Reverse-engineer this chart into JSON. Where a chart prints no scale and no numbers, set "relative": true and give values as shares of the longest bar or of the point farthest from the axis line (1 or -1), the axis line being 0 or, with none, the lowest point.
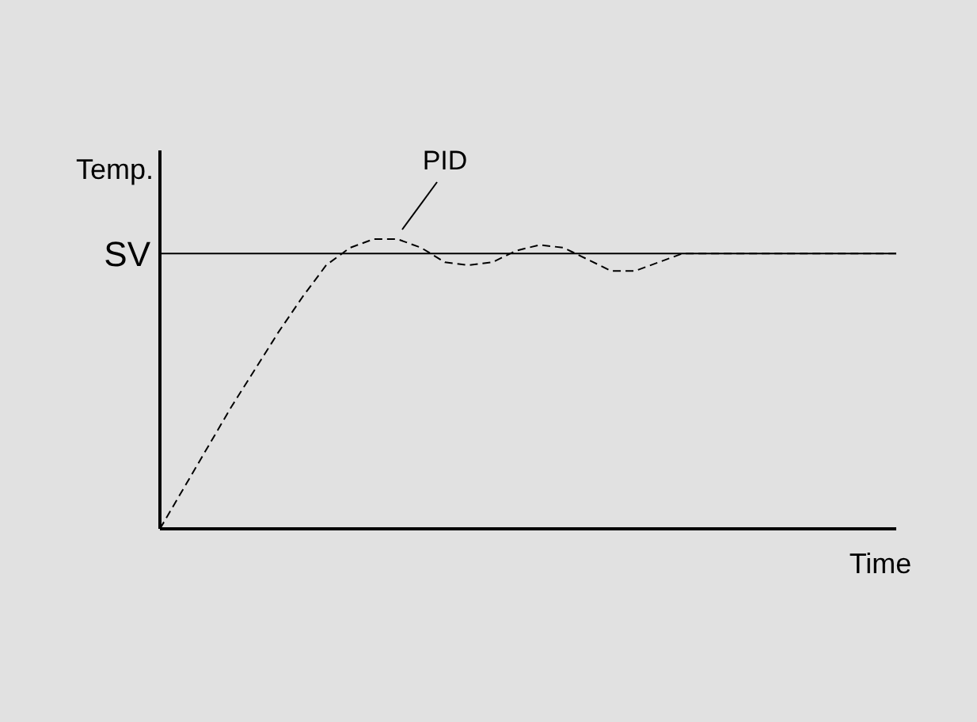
{
  "chart_data": {
    "type": "line",
    "relative": true,
    "xlabel": "Time",
    "ylabel": "Temp.",
    "annotations": [
      "PID"
    ],
    "categories": [
      null,
      null,
      null,
      null,
      null,
      null,
      null,
      null,
      null,
      null,
      null,
      null,
      null,
      null,
      null,
      null,
      null,
      null,
      null,
      null,
      null,
      null,
      null,
      null,
      null,
      null,
      null,
      null,
      null,
      null,
      null,
      null
    ],
    "series": [
      {
        "color": "#000000",
        "line_style": "dashed",
        "values": [
          0,
          0.14,
          0.28,
          0.42,
          0.55,
          0.68,
          0.8,
          0.91,
          0.97,
          1,
          1,
          0.97,
          0.92,
          0.91,
          0.92,
          0.96,
          0.98,
          0.97,
          0.93,
          0.89,
          0.89,
          0.92,
          0.95,
          0.95,
          0.95,
          0.95,
          0.95,
          0.95,
          0.95,
          0.95,
          0.95,
          0.95
        ]
      }
    ],
    "ref_lines": [
      {
        "axis": "y",
        "value": 0.95,
        "label": "SV",
        "color": "#000000",
        "line_style": "solid"
      }
    ],
    "marker": "none"
  }
}
